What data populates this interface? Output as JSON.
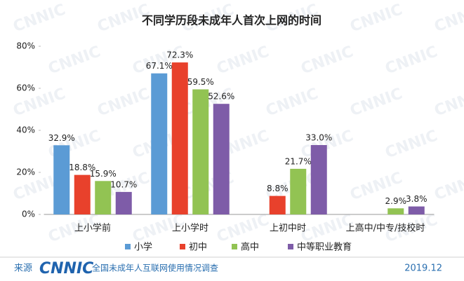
{
  "chart_data": {
    "type": "bar",
    "title": "不同学历段未成年人首次上网的时间",
    "categories": [
      "上小学前",
      "上小学时",
      "上初中时",
      "上高中/中专/技校时"
    ],
    "series": [
      {
        "name": "小学",
        "color": "#5b9bd5",
        "values": [
          32.9,
          67.1,
          null,
          null
        ],
        "value_labels": [
          "32.9%",
          "67.1%",
          null,
          null
        ]
      },
      {
        "name": "初中",
        "color": "#e8412c",
        "values": [
          18.8,
          72.3,
          8.8,
          null
        ],
        "value_labels": [
          "18.8%",
          "72.3%",
          "8.8%",
          null
        ]
      },
      {
        "name": "高中",
        "color": "#92c353",
        "values": [
          15.9,
          59.5,
          21.7,
          2.9
        ],
        "value_labels": [
          "15.9%",
          "59.5%",
          "21.7%",
          "2.9%"
        ]
      },
      {
        "name": "中等职业教育",
        "color": "#7e5ca8",
        "values": [
          10.7,
          52.6,
          33.0,
          3.8
        ],
        "value_labels": [
          "10.7%",
          "52.6%",
          "33.0%",
          "3.8%"
        ]
      }
    ],
    "ylim": [
      0,
      80
    ],
    "yticks": [
      {
        "value": 0,
        "label": "0%"
      },
      {
        "value": 20,
        "label": "20%"
      },
      {
        "value": 40,
        "label": "40%"
      },
      {
        "value": 60,
        "label": "60%"
      },
      {
        "value": 80,
        "label": "80%"
      }
    ],
    "legend": "bottom"
  },
  "footer": {
    "source": "来源",
    "logo": "CNNIC",
    "survey": "全国未成年人互联网使用情况调查",
    "date": "2019.12"
  },
  "watermark": "CNNIC"
}
